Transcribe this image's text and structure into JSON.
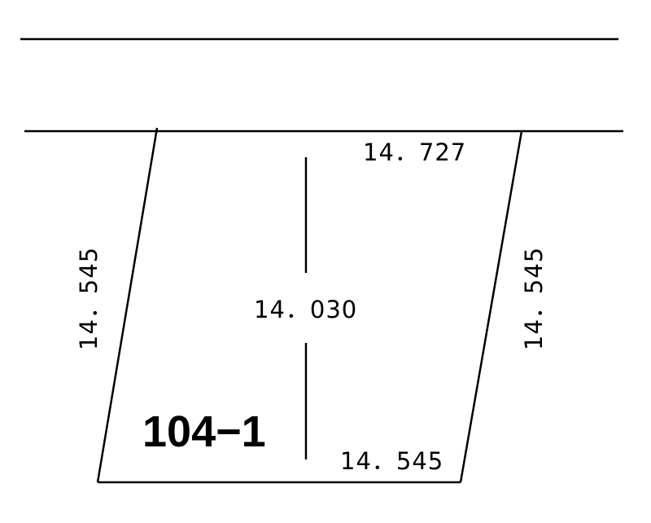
{
  "dimensions": {
    "top": "14．727",
    "center": "14．030",
    "bottom": "14．545",
    "left": "14．545",
    "right": "14．545"
  },
  "lot_number": "104−1"
}
